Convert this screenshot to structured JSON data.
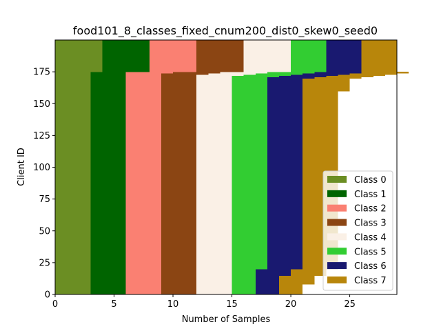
{
  "chart_data": {
    "type": "bar",
    "orientation": "horizontal-stacked",
    "title": "food101_8_classes_fixed_cnum200_dist0_skew0_seed0",
    "xlabel": "Number of Samples",
    "ylabel": "Client ID",
    "xlim": [
      0,
      29
    ],
    "ylim": [
      0,
      200
    ],
    "x_ticks": [
      0,
      5,
      10,
      15,
      20,
      25
    ],
    "y_ticks": [
      0,
      25,
      50,
      75,
      100,
      125,
      150,
      175
    ],
    "legend_position": "lower-right",
    "series": [
      {
        "name": "Class 0",
        "color": "#6b8e23"
      },
      {
        "name": "Class 1",
        "color": "#006400"
      },
      {
        "name": "Class 2",
        "color": "#fa8072"
      },
      {
        "name": "Class 3",
        "color": "#8b4513"
      },
      {
        "name": "Class 4",
        "color": "#faf0e6"
      },
      {
        "name": "Class 5",
        "color": "#32cd32"
      },
      {
        "name": "Class 6",
        "color": "#191970"
      },
      {
        "name": "Class 7",
        "color": "#b8860b"
      }
    ],
    "client_groups": [
      {
        "clients": [
          0,
          8
        ],
        "counts": [
          3,
          3,
          3,
          3,
          3,
          2,
          2,
          2
        ]
      },
      {
        "clients": [
          8,
          15
        ],
        "counts": [
          3,
          3,
          3,
          3,
          3,
          2,
          2,
          3
        ]
      },
      {
        "clients": [
          15,
          20
        ],
        "counts": [
          3,
          3,
          3,
          3,
          3,
          2,
          3,
          3
        ]
      },
      {
        "clients": [
          20,
          160
        ],
        "counts": [
          3,
          3,
          3,
          3,
          3,
          3,
          3,
          3
        ]
      },
      {
        "clients": [
          160,
          170
        ],
        "counts": [
          3,
          3,
          3,
          3,
          3,
          3,
          3,
          4
        ]
      },
      {
        "clients": [
          170,
          171
        ],
        "counts": [
          3,
          3,
          3,
          3,
          3,
          3,
          4,
          4
        ]
      },
      {
        "clients": [
          171,
          172
        ],
        "counts": [
          3,
          3,
          3,
          3,
          3,
          4,
          4,
          4
        ]
      },
      {
        "clients": [
          172,
          173
        ],
        "counts": [
          3,
          3,
          3,
          3,
          4,
          4,
          4,
          4
        ]
      },
      {
        "clients": [
          173,
          174
        ],
        "counts": [
          3,
          3,
          3,
          4,
          4,
          4,
          4,
          4
        ]
      },
      {
        "clients": [
          174,
          175
        ],
        "counts": [
          3,
          3,
          4,
          4,
          4,
          4,
          4,
          4
        ]
      },
      {
        "clients": [
          175,
          200
        ],
        "counts": [
          4,
          4,
          4,
          4,
          4,
          3,
          3,
          3
        ]
      }
    ]
  }
}
